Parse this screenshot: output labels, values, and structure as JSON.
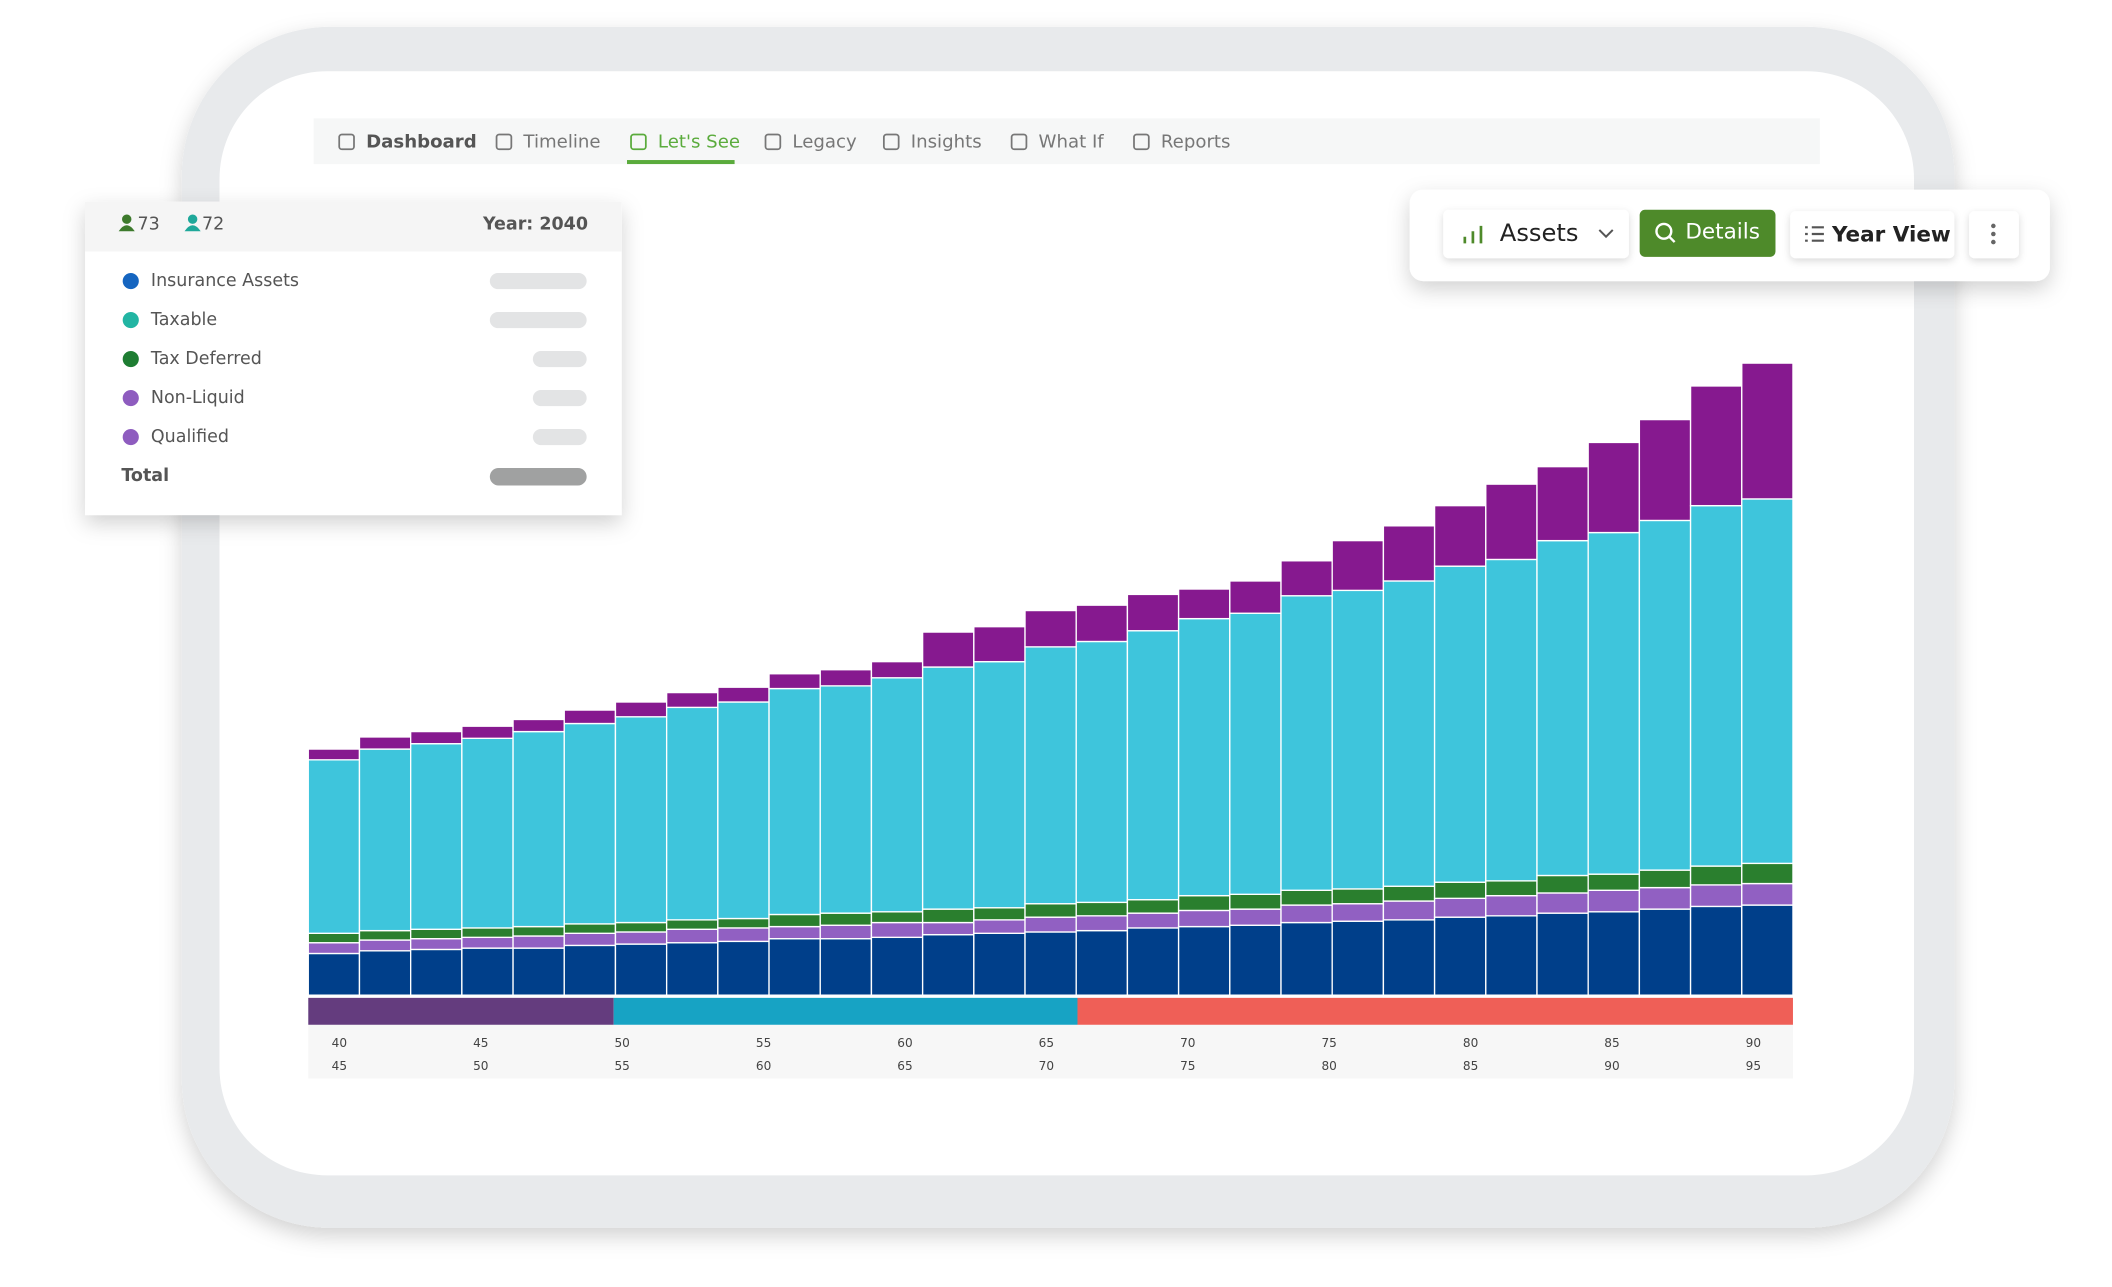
{
  "nav": {
    "items": [
      "Dashboard",
      "Timeline",
      "Let's See",
      "Legacy",
      "Insights",
      "What If",
      "Reports"
    ],
    "active": 2
  },
  "tooltip": {
    "person1": "73",
    "person2": "72",
    "year": "Year: 2040",
    "items": [
      {
        "label": "Insurance Assets",
        "color": "#1565c0"
      },
      {
        "label": "Taxable",
        "color": "#22b5a3"
      },
      {
        "label": "Tax Deferred",
        "color": "#1e7d32"
      },
      {
        "label": "Non-Liquid",
        "color": "#8e5cbf"
      },
      {
        "label": "Qualified",
        "color": "#8e5cbf"
      }
    ],
    "total": "Total"
  },
  "toolbar": {
    "view": "Assets",
    "details": "Details",
    "mode": "Year View"
  },
  "chart_data": {
    "type": "stacked_bar",
    "series": [
      {
        "name": "Insurance Assets",
        "color": "#003f8a",
        "values": [
          31,
          33,
          34,
          35,
          35,
          37,
          38,
          39,
          40,
          42,
          42,
          43,
          45,
          46,
          47,
          48,
          50,
          51,
          52,
          54,
          55,
          56,
          58,
          59,
          61,
          62,
          64,
          66,
          67
        ]
      },
      {
        "name": "Qualified",
        "color": "#9160c2",
        "values": [
          8,
          8,
          8,
          8,
          9,
          9,
          9,
          10,
          10,
          9,
          10,
          11,
          9,
          10,
          11,
          11,
          11,
          12,
          12,
          13,
          13,
          14,
          14,
          15,
          15,
          16,
          16,
          16,
          16
        ]
      },
      {
        "name": "Tax Deferred",
        "color": "#2a7f2e",
        "values": [
          7,
          7,
          7,
          7,
          7,
          7,
          7,
          7,
          7,
          9,
          9,
          8,
          10,
          9,
          10,
          10,
          10,
          11,
          11,
          11,
          11,
          11,
          12,
          11,
          13,
          12,
          13,
          14,
          15
        ]
      },
      {
        "name": "Taxable",
        "color": "#3ec5dc",
        "values": [
          129,
          135,
          138,
          141,
          145,
          149,
          153,
          158,
          161,
          168,
          169,
          174,
          180,
          183,
          191,
          194,
          200,
          206,
          209,
          219,
          222,
          227,
          235,
          239,
          249,
          254,
          260,
          268,
          271
        ]
      },
      {
        "name": "Non-Liquid",
        "color": "#86198f",
        "values": [
          8,
          9,
          9,
          9,
          9,
          10,
          11,
          11,
          11,
          11,
          12,
          12,
          26,
          26,
          27,
          27,
          27,
          22,
          24,
          26,
          37,
          41,
          45,
          56,
          55,
          67,
          75,
          89,
          101
        ]
      }
    ],
    "xlim": [
      38.9,
      91.4
    ],
    "xticks": [
      40,
      45,
      50,
      55,
      60,
      65,
      70,
      75,
      80,
      85,
      90
    ],
    "x2ticks": [
      45,
      50,
      55,
      60,
      65,
      70,
      75,
      80,
      85,
      90,
      95
    ],
    "phases": [
      {
        "color": "#643c7e",
        "from": 38.9,
        "to": 49.7
      },
      {
        "color": "#17a3c4",
        "from": 49.7,
        "to": 66.1
      },
      {
        "color": "#ef5f57",
        "from": 66.1,
        "to": 91.4
      }
    ]
  }
}
